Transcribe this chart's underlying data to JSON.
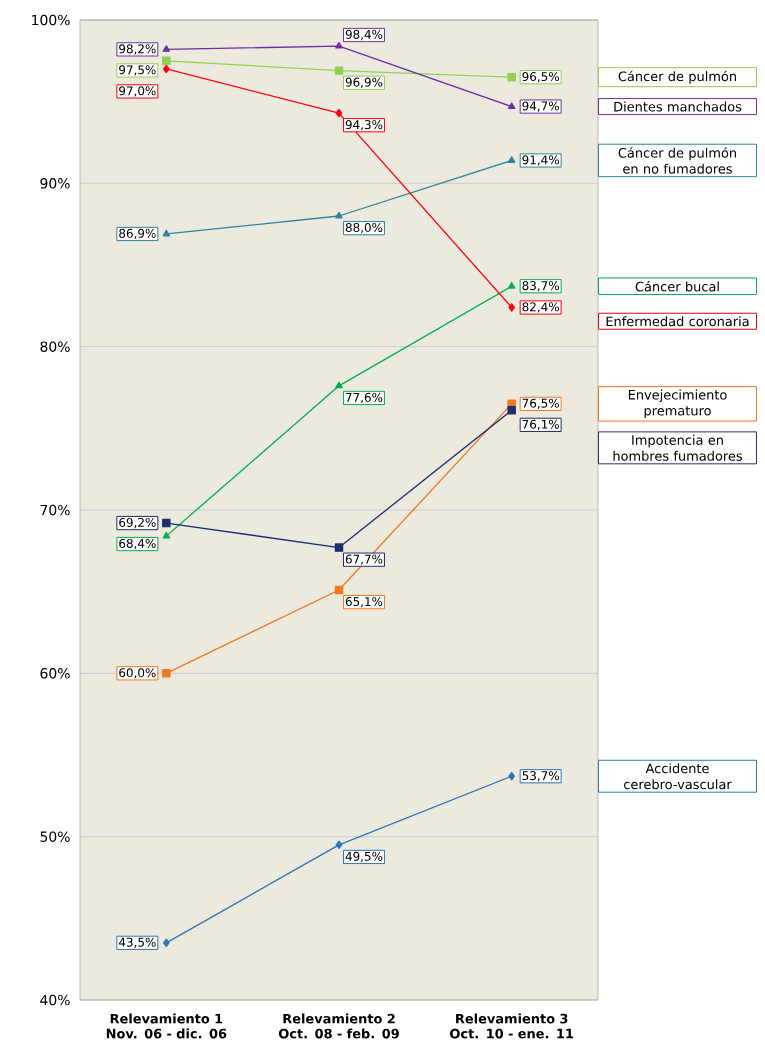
{
  "chart_data": {
    "type": "line",
    "categories": [
      "Relevamiento 1 Nov. 06 - dic. 06",
      "Relevamiento 2 Oct. 08 - feb. 09",
      "Relevamiento 3 Oct. 10 - ene. 11"
    ],
    "ylim": [
      40,
      100
    ],
    "yticks": [
      {
        "value": 40,
        "label": "40%"
      },
      {
        "value": 50,
        "label": "50%"
      },
      {
        "value": 60,
        "label": "60%"
      },
      {
        "value": 70,
        "label": "70%"
      },
      {
        "value": 80,
        "label": "80%"
      },
      {
        "value": 90,
        "label": "90%"
      },
      {
        "value": 100,
        "label": "100%"
      }
    ],
    "grid": "y",
    "series": [
      {
        "name": "Cáncer de pulmón",
        "color": "#92d050",
        "marker": "square",
        "values": [
          97.5,
          96.9,
          96.5
        ],
        "value_labels": [
          "97,5%",
          "96,9%",
          "96,5%"
        ]
      },
      {
        "name": "Dientes manchados",
        "color": "#7030a0",
        "marker": "triangle",
        "values": [
          98.2,
          98.4,
          94.7
        ],
        "value_labels": [
          "98,2%",
          "98,4%",
          "94,7%"
        ]
      },
      {
        "name": "Cáncer de pulmón en no fumadores",
        "color": "#31849b",
        "marker": "triangle",
        "values": [
          86.9,
          88.0,
          91.4
        ],
        "value_labels": [
          "86,9%",
          "88,0%",
          "91,4%"
        ]
      },
      {
        "name": "Cáncer bucal",
        "color": "#00b050",
        "marker": "triangle",
        "values": [
          68.4,
          77.6,
          83.7
        ],
        "value_labels": [
          "68,4%",
          "77,6%",
          "83,7%"
        ]
      },
      {
        "name": "Enfermedad coronaria",
        "color": "#ff0000",
        "marker": "diamond",
        "values": [
          97.0,
          94.3,
          82.4
        ],
        "value_labels": [
          "97,0%",
          "94,3%",
          "82,4%"
        ]
      },
      {
        "name": "Envejecimiento prematuro",
        "color": "#f07820",
        "marker": "square",
        "values": [
          60.0,
          65.1,
          76.5
        ],
        "value_labels": [
          "60,0%",
          "65,1%",
          "76,5%"
        ]
      },
      {
        "name": "Impotencia en hombres fumadores",
        "color": "#1f2d6e",
        "marker": "square",
        "values": [
          69.2,
          67.7,
          76.1
        ],
        "value_labels": [
          "69,2%",
          "67,7%",
          "76,1%"
        ]
      },
      {
        "name": "Accidente cerebro-vascular",
        "color": "#2e75b6",
        "marker": "diamond",
        "values": [
          43.5,
          49.5,
          53.7
        ],
        "value_labels": [
          "43,5%",
          "49,5%",
          "53,7%"
        ]
      }
    ]
  }
}
